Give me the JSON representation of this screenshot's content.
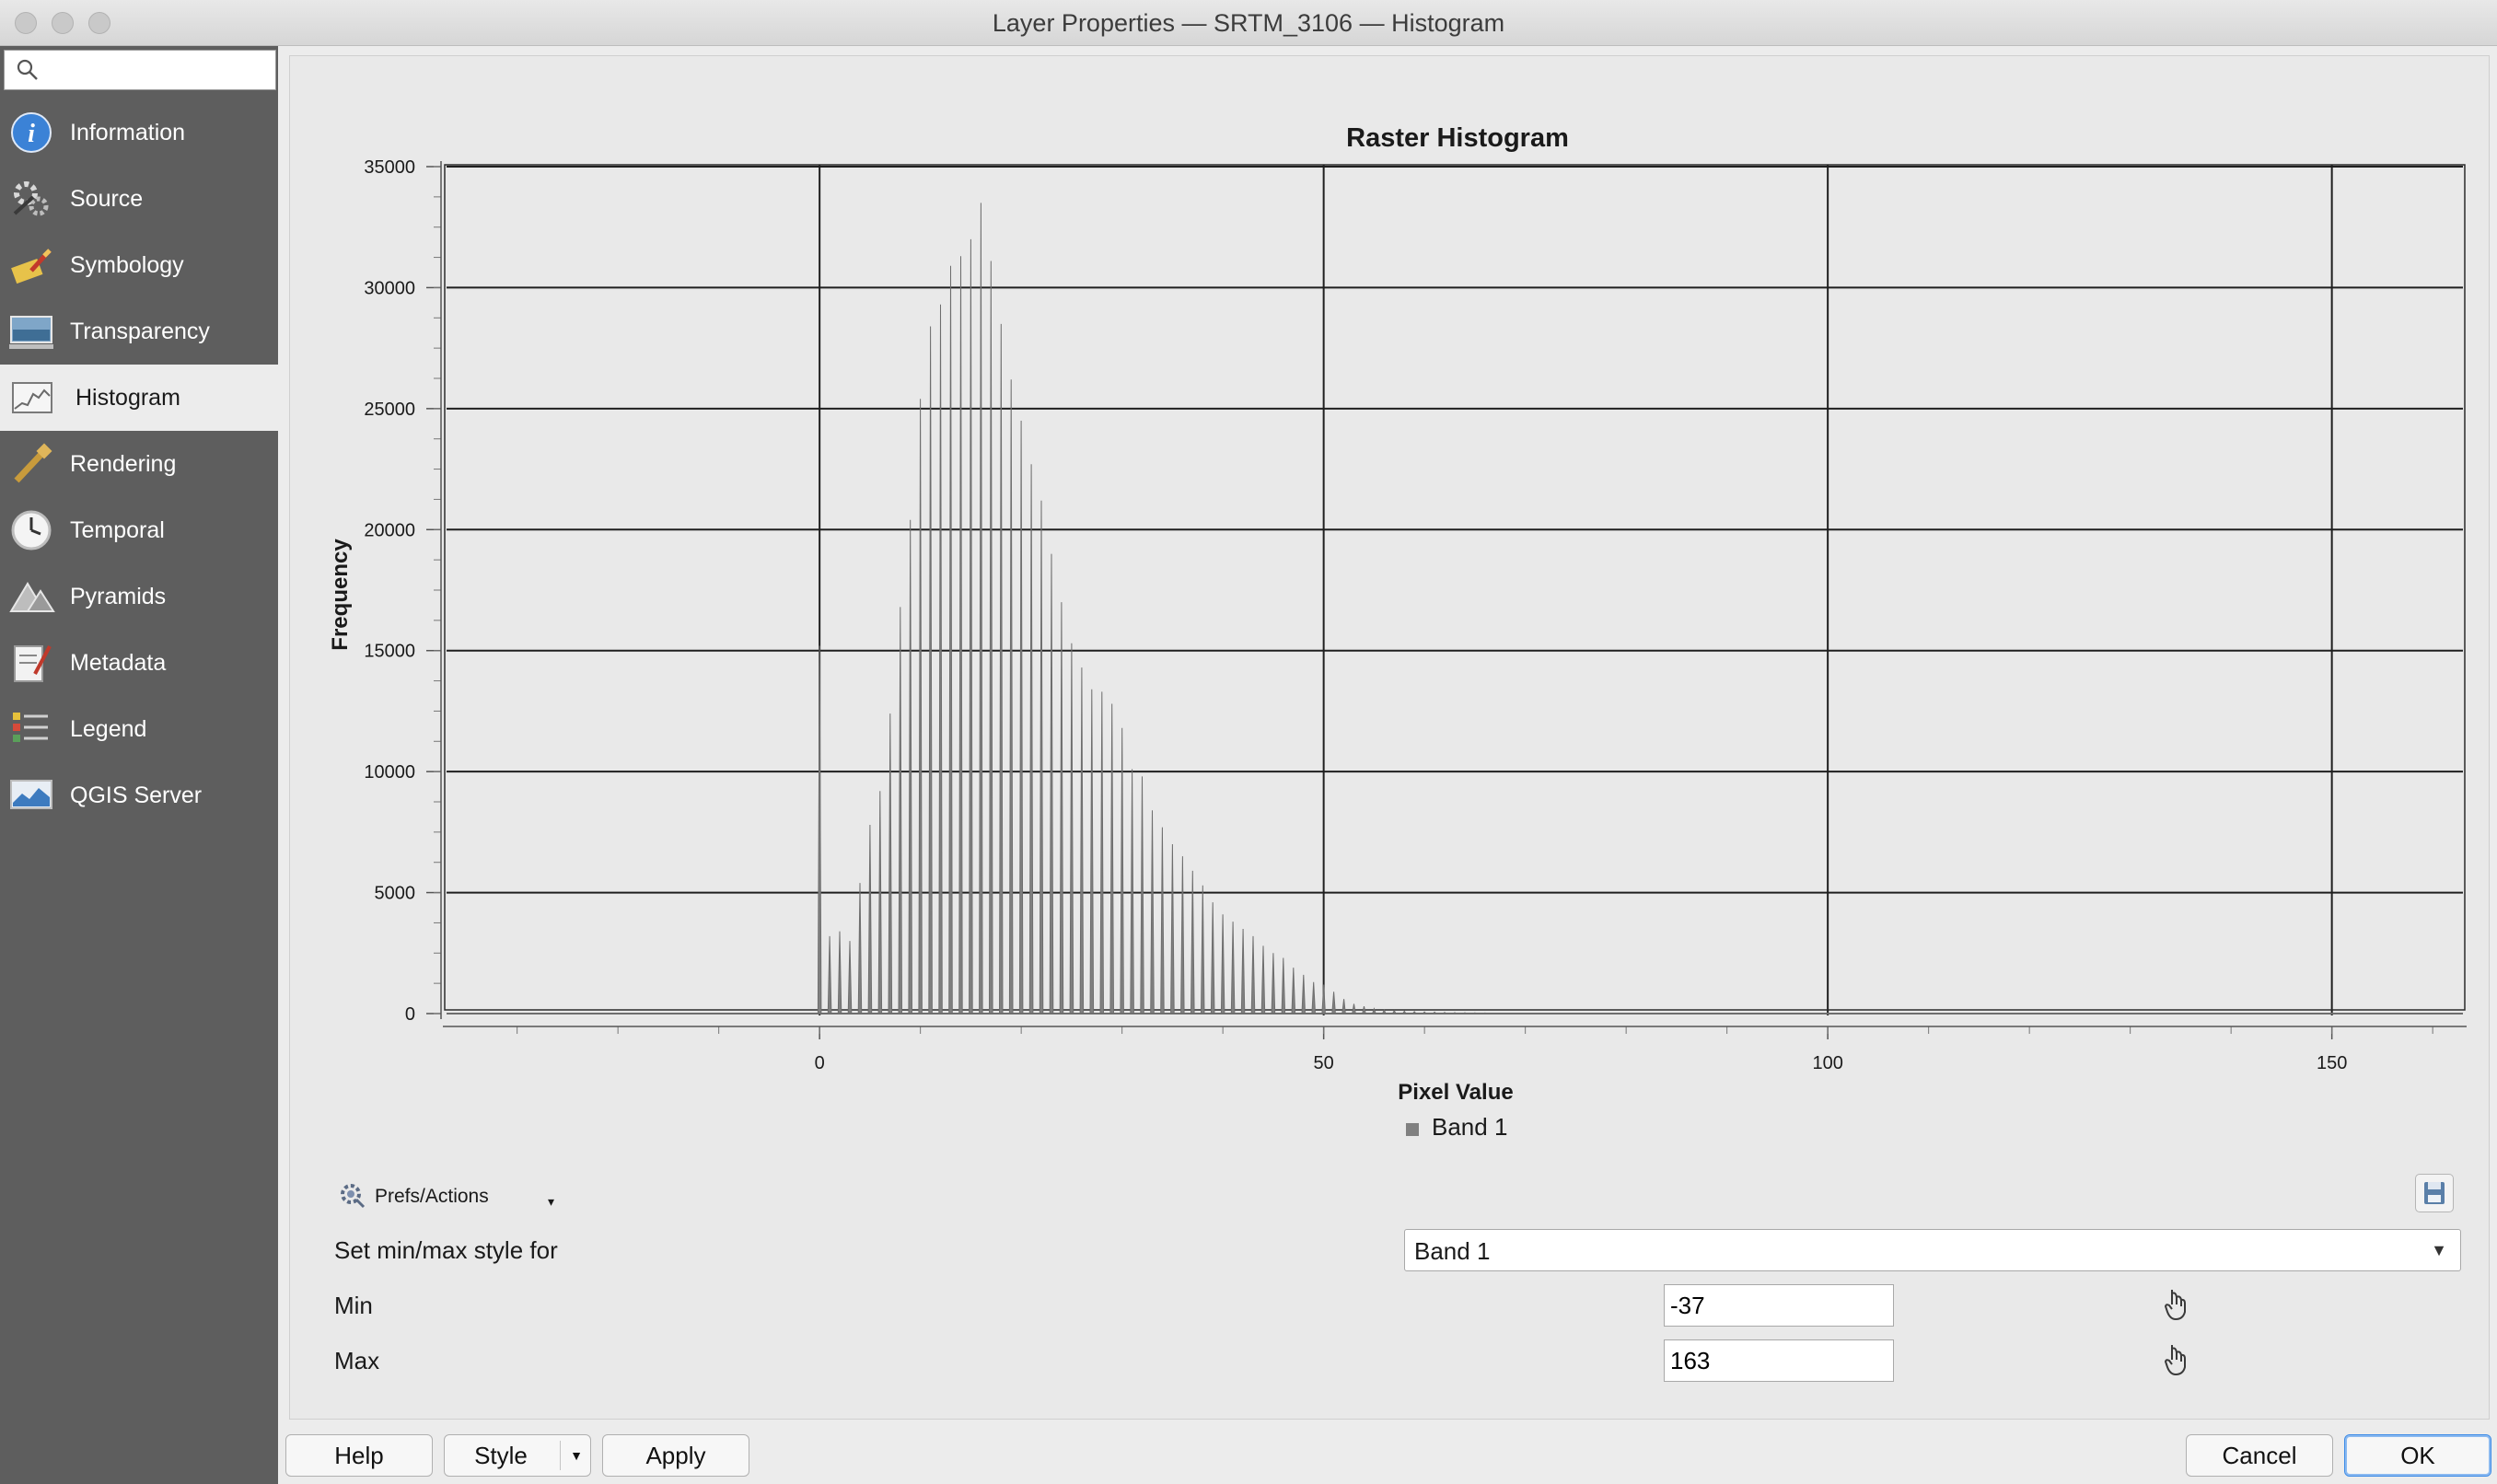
{
  "window": {
    "title": "Layer Properties — SRTM_3106 — Histogram"
  },
  "search": {
    "placeholder": ""
  },
  "sidebar": {
    "items": [
      {
        "label": "Information",
        "icon": "info-icon"
      },
      {
        "label": "Source",
        "icon": "source-icon"
      },
      {
        "label": "Symbology",
        "icon": "symbology-icon"
      },
      {
        "label": "Transparency",
        "icon": "transparency-icon"
      },
      {
        "label": "Histogram",
        "icon": "histogram-icon",
        "active": true
      },
      {
        "label": "Rendering",
        "icon": "rendering-icon"
      },
      {
        "label": "Temporal",
        "icon": "temporal-icon"
      },
      {
        "label": "Pyramids",
        "icon": "pyramids-icon"
      },
      {
        "label": "Metadata",
        "icon": "metadata-icon"
      },
      {
        "label": "Legend",
        "icon": "legend-icon"
      },
      {
        "label": "QGIS Server",
        "icon": "qgis-server-icon"
      }
    ]
  },
  "chart_data": {
    "type": "bar",
    "title": "Raster Histogram",
    "xlabel": "Pixel Value",
    "ylabel": "Frequency",
    "xlim": [
      -37,
      163
    ],
    "ylim": [
      0,
      35000
    ],
    "xticks": [
      0,
      50,
      100,
      150
    ],
    "yticks": [
      0,
      5000,
      10000,
      15000,
      20000,
      25000,
      30000,
      35000
    ],
    "grid": true,
    "legend_position": "bottom-center",
    "series": [
      {
        "name": "Band 1",
        "color": "#808080",
        "x": [
          0,
          1,
          2,
          3,
          4,
          5,
          6,
          7,
          8,
          9,
          10,
          11,
          12,
          13,
          14,
          15,
          16,
          17,
          18,
          19,
          20,
          21,
          22,
          23,
          24,
          25,
          26,
          27,
          28,
          29,
          30,
          31,
          32,
          33,
          34,
          35,
          36,
          37,
          38,
          39,
          40,
          41,
          42,
          43,
          44,
          45,
          46,
          47,
          48,
          49,
          50,
          51,
          52,
          53,
          54,
          55,
          56,
          57,
          58,
          59,
          60,
          61,
          62,
          63,
          64,
          65,
          66,
          67,
          68,
          69,
          70,
          71,
          72,
          73,
          74,
          75,
          76,
          77,
          78,
          79,
          80,
          81,
          82,
          83,
          84,
          85,
          86,
          87,
          88,
          89,
          90,
          91,
          92,
          93,
          94,
          95,
          96,
          97,
          98,
          99,
          100,
          102,
          104,
          107,
          110
        ],
        "values": [
          15200,
          3200,
          3400,
          3000,
          5400,
          7800,
          9200,
          12400,
          16800,
          20400,
          25400,
          28400,
          29300,
          30900,
          31300,
          32000,
          33500,
          31100,
          28500,
          26200,
          24500,
          22700,
          21200,
          19000,
          17000,
          15300,
          14300,
          13400,
          13300,
          12800,
          11800,
          10100,
          9800,
          8400,
          7700,
          7000,
          6500,
          5900,
          5300,
          4600,
          4100,
          3800,
          3500,
          3200,
          2800,
          2500,
          2300,
          1900,
          1600,
          1300,
          1200,
          900,
          600,
          400,
          300,
          200,
          150,
          120,
          100,
          80,
          70,
          60,
          50,
          40,
          35,
          30,
          25,
          20,
          20,
          20,
          15,
          15,
          15,
          10,
          10,
          10,
          10,
          10,
          10,
          8,
          8,
          8,
          6,
          6,
          6,
          5,
          5,
          5,
          4,
          4,
          4,
          3,
          3,
          3,
          3,
          3,
          2,
          2,
          2,
          2,
          2,
          1,
          1,
          1,
          1
        ]
      }
    ]
  },
  "prefs": {
    "label": "Prefs/Actions",
    "icon": "prefs-gear-icon"
  },
  "form": {
    "minmax_label": "Set min/max style for",
    "band_selected": "Band 1",
    "min_label": "Min",
    "min_value": "-37",
    "max_label": "Max",
    "max_value": "163"
  },
  "buttons": {
    "help": "Help",
    "style": "Style",
    "apply": "Apply",
    "cancel": "Cancel",
    "ok": "OK"
  }
}
